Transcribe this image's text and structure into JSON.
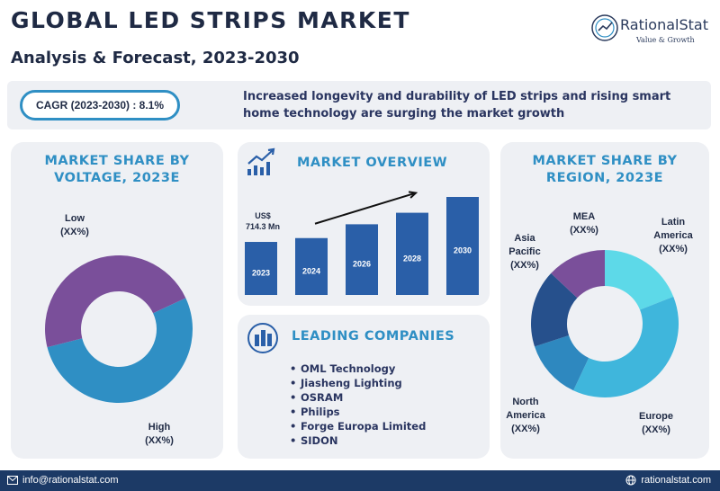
{
  "header": {
    "title": "GLOBAL LED STRIPS MARKET",
    "subtitle": "Analysis & Forecast, 2023-2030"
  },
  "logo": {
    "name": "RationalStat",
    "tagline": "Value & Growth"
  },
  "banner": {
    "cagr": "CAGR (2023-2030) : 8.1%",
    "text": "Increased longevity and durability of LED strips and rising smart home technology are surging the market growth"
  },
  "voltage_panel": {
    "title_line1": "MARKET SHARE BY",
    "title_line2": "VOLTAGE, 2023E",
    "labels": [
      {
        "name": "Low",
        "value": "(XX%)"
      },
      {
        "name": "High",
        "value": "(XX%)"
      }
    ]
  },
  "overview_panel": {
    "title": "MARKET OVERVIEW",
    "value_line1": "US$",
    "value_line2": "714.3 Mn"
  },
  "companies_panel": {
    "title": "LEADING COMPANIES",
    "items": [
      "OML Technology",
      "Jiasheng Lighting",
      "OSRAM",
      "Philips",
      "Forge Europa Limited",
      "SIDON"
    ]
  },
  "region_panel": {
    "title_line1": "MARKET SHARE BY",
    "title_line2": "REGION, 2023E",
    "labels": [
      {
        "line1": "MEA",
        "line2": "",
        "value": "(XX%)"
      },
      {
        "line1": "Latin",
        "line2": "America",
        "value": "(XX%)"
      },
      {
        "line1": "Asia",
        "line2": "Pacific",
        "value": "(XX%)"
      },
      {
        "line1": "North",
        "line2": "America",
        "value": "(XX%)"
      },
      {
        "line1": "Europe",
        "line2": "",
        "value": "(XX%)"
      }
    ]
  },
  "footer": {
    "email": "info@rationalstat.com",
    "website": "rationalstat.com"
  },
  "chart_data": [
    {
      "type": "pie",
      "title": "MARKET SHARE BY VOLTAGE, 2023E",
      "categories": [
        "Low",
        "High"
      ],
      "values": [
        53,
        47
      ],
      "colors": [
        "#2f8fc4",
        "#7a4f9a"
      ],
      "donut": true
    },
    {
      "type": "bar",
      "title": "MARKET OVERVIEW",
      "categories": [
        "2023",
        "2024",
        "2026",
        "2028",
        "2030"
      ],
      "values": [
        714.3,
        766,
        952,
        1107,
        1320
      ],
      "ylim": [
        0,
        1320
      ],
      "color": "#2a5fa8",
      "data_labels": [
        "US$ 714.3 Mn",
        "",
        "",
        "",
        ""
      ],
      "trend_arrow": true
    },
    {
      "type": "pie",
      "title": "MARKET SHARE BY REGION, 2023E",
      "categories": [
        "Latin America",
        "Europe",
        "North America",
        "Asia Pacific",
        "MEA"
      ],
      "values": [
        19,
        38,
        13,
        17,
        13
      ],
      "colors": [
        "#5dd9e8",
        "#3fb6dc",
        "#2e88bf",
        "#26508c",
        "#7a4f9a"
      ],
      "donut": true
    }
  ],
  "colors": {
    "navy": "#1f2a44",
    "accent_blue": "#2f8fc4",
    "panel_bg": "#eef0f4",
    "footer_bg": "#1c3a66",
    "bar_blue": "#2a5fa8"
  }
}
